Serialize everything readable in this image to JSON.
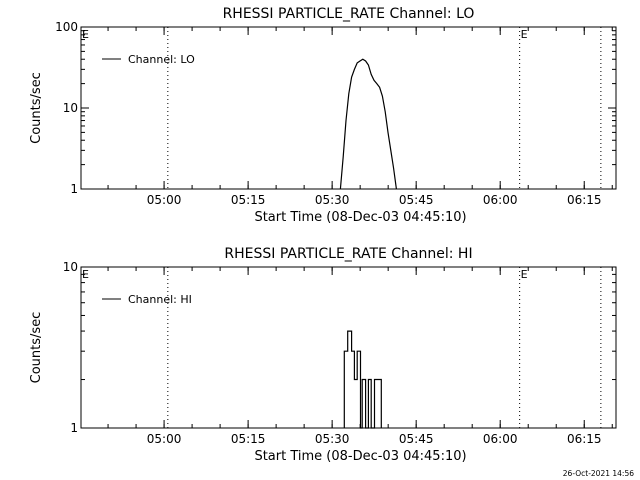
{
  "footer": {
    "timestamp": "26-Oct-2021 14:56"
  },
  "chart_data": [
    {
      "type": "line",
      "title": "RHESSI PARTICLE_RATE Channel: LO",
      "xlabel": "Start Time (08-Dec-03 04:45:10)",
      "ylabel": "Counts/sec",
      "yscale": "log",
      "ylim": [
        1,
        100
      ],
      "xlim_minutes_after_start": [
        0,
        95.5
      ],
      "y_tick_labels": [
        "1",
        "10",
        "100"
      ],
      "y_tick_values": [
        1,
        10,
        100
      ],
      "x_tick_labels": [
        "05:00",
        "05:15",
        "05:30",
        "05:45",
        "06:00",
        "06:15"
      ],
      "x_tick_values": [
        14.83,
        29.83,
        44.83,
        59.83,
        74.83,
        89.83
      ],
      "legend": {
        "position": "top-left",
        "label": "Channel: LO"
      },
      "grid": false,
      "event_markers": [
        {
          "x": 15.5,
          "label": ""
        },
        {
          "x": 78.3,
          "label": "E"
        },
        {
          "x": 92.8,
          "label": ""
        }
      ],
      "corner_label": "E",
      "series": [
        {
          "name": "Channel: LO",
          "x": [
            46.3,
            46.8,
            47.3,
            47.8,
            48.3,
            48.8,
            49.3,
            49.8,
            50.3,
            50.8,
            51.3,
            51.8,
            52.3,
            52.8,
            53.3,
            53.8,
            54.3,
            54.8,
            55.3,
            55.8,
            56.3
          ],
          "y": [
            1.0,
            2.5,
            7.0,
            15.0,
            24.0,
            30.0,
            36.0,
            38.0,
            40.0,
            38.0,
            34.0,
            26.0,
            22.0,
            20.0,
            18.0,
            14.0,
            9.0,
            5.0,
            3.0,
            1.8,
            1.0
          ]
        }
      ]
    },
    {
      "type": "line",
      "title": "RHESSI PARTICLE_RATE Channel: HI",
      "xlabel": "Start Time (08-Dec-03 04:45:10)",
      "ylabel": "Counts/sec",
      "yscale": "log",
      "ylim": [
        1,
        10
      ],
      "xlim_minutes_after_start": [
        0,
        95.5
      ],
      "y_tick_labels": [
        "1",
        "10"
      ],
      "y_tick_values": [
        1,
        10
      ],
      "x_tick_labels": [
        "05:00",
        "05:15",
        "05:30",
        "05:45",
        "06:00",
        "06:15"
      ],
      "x_tick_values": [
        14.83,
        29.83,
        44.83,
        59.83,
        74.83,
        89.83
      ],
      "legend": {
        "position": "top-left",
        "label": "Channel: HI"
      },
      "grid": false,
      "event_markers": [
        {
          "x": 15.5,
          "label": ""
        },
        {
          "x": 78.3,
          "label": "E"
        },
        {
          "x": 92.8,
          "label": ""
        }
      ],
      "corner_label": "E",
      "series": [
        {
          "name": "Channel: HI",
          "x": [
            47.0,
            47.0,
            47.6,
            47.6,
            48.3,
            48.3,
            48.8,
            48.8,
            49.3,
            49.3,
            49.9,
            49.9,
            50.2,
            50.2,
            50.8,
            50.8,
            51.3,
            51.3,
            51.8,
            51.8,
            52.4,
            52.4,
            53.6,
            53.6
          ],
          "y": [
            1.0,
            3.0,
            3.0,
            4.0,
            4.0,
            3.0,
            3.0,
            2.0,
            2.0,
            3.0,
            3.0,
            1.0,
            1.0,
            2.0,
            2.0,
            1.0,
            1.0,
            2.0,
            2.0,
            1.0,
            1.0,
            2.0,
            2.0,
            1.0
          ]
        }
      ]
    }
  ]
}
